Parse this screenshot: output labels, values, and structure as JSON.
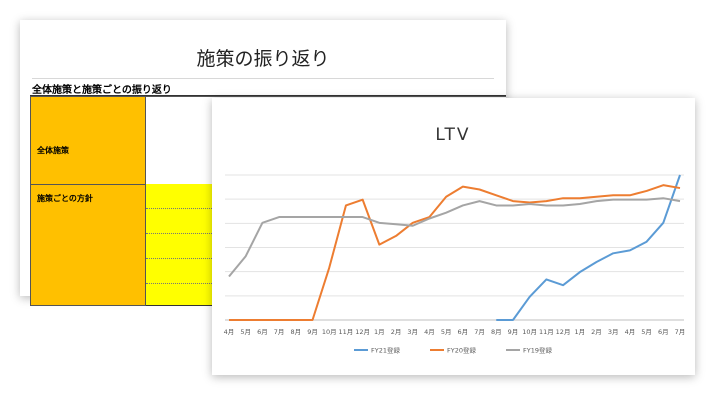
{
  "back_slide": {
    "title": "施策の振り返り",
    "subtitle": "全体施策と施策ごとの振り返り",
    "rows": [
      {
        "label": "全体施策"
      },
      {
        "label": "施策ごとの方針"
      }
    ],
    "colors": {
      "label_fill": "#ffc000",
      "highlight_fill": "#ffff00"
    }
  },
  "chart_data": {
    "type": "line",
    "title": "LTV",
    "categories": [
      "4月",
      "5月",
      "6月",
      "7月",
      "8月",
      "9月",
      "10月",
      "11月",
      "12月",
      "1月",
      "2月",
      "3月",
      "4月",
      "5月",
      "6月",
      "7月",
      "8月",
      "9月",
      "10月",
      "11月",
      "12月",
      "1月",
      "2月",
      "3月",
      "4月",
      "5月",
      "6月",
      "7月"
    ],
    "ylim": [
      0,
      100
    ],
    "grid": true,
    "legend_position": "bottom",
    "series": [
      {
        "name": "FY21登録",
        "color": "#5b9bd5",
        "values": [
          null,
          null,
          null,
          null,
          null,
          null,
          null,
          null,
          null,
          null,
          null,
          null,
          null,
          null,
          null,
          null,
          0,
          0,
          16,
          28,
          24,
          33,
          40,
          46,
          48,
          54,
          67,
          100
        ]
      },
      {
        "name": "FY20登録",
        "color": "#ed7d31",
        "values": [
          0,
          0,
          0,
          0,
          0,
          0,
          36,
          79,
          83,
          52,
          58,
          67,
          71,
          85,
          92,
          90,
          86,
          82,
          81,
          82,
          84,
          84,
          85,
          86,
          86,
          89,
          93,
          91
        ]
      },
      {
        "name": "FY19登録",
        "color": "#a5a5a5",
        "values": [
          30,
          44,
          67,
          71,
          71,
          71,
          71,
          71,
          71,
          67,
          66,
          65,
          70,
          74,
          79,
          82,
          79,
          79,
          80,
          79,
          79,
          80,
          82,
          83,
          83,
          83,
          84,
          82
        ]
      }
    ]
  }
}
